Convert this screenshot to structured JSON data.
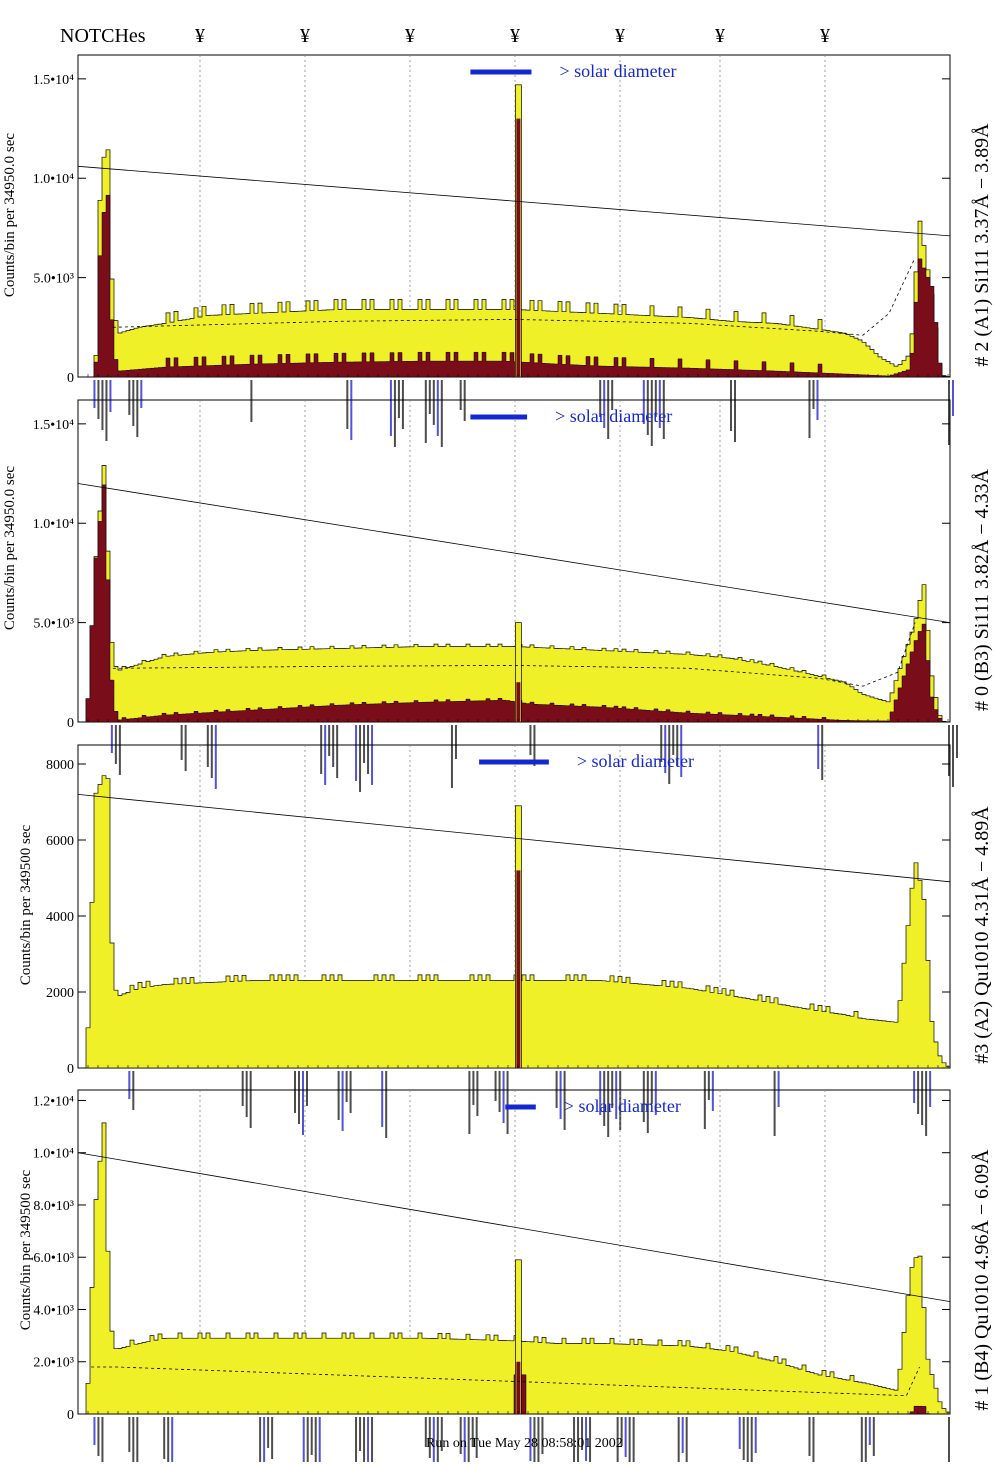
{
  "header": {
    "notch_label": "NOTCHes",
    "notch_symbol": "¥",
    "notch_positions": [
      200,
      305,
      410,
      515,
      620,
      720,
      825
    ]
  },
  "footer": {
    "run_text": "Run on Tue May 28 08:58:01 2002"
  },
  "colors": {
    "light_fill": "#f0f028",
    "dark_fill": "#7a0d1a",
    "accent_blue": "#1428d0",
    "label_blue": "#1a1acc"
  },
  "chart_data": [
    {
      "type": "histogram",
      "panel_title": "# 2 (A1) Si111  3.37Å − 3.89Å",
      "ylabel": "Counts/bin per  34950.0 sec",
      "solar_label": "> solar diameter",
      "ylim": [
        0,
        16200
      ],
      "yticks": [
        {
          "v": 0,
          "label": "0"
        },
        {
          "v": 5000,
          "label": "5.0•10³"
        },
        {
          "v": 10000,
          "label": "1.0•10⁴"
        },
        {
          "v": 15000,
          "label": "1.5•10⁴"
        }
      ],
      "light_nodes": [
        [
          0,
          0
        ],
        [
          0.02,
          0
        ],
        [
          0.026,
          10200
        ],
        [
          0.034,
          12000
        ],
        [
          0.04,
          3500
        ],
        [
          0.047,
          2200
        ],
        [
          0.07,
          2500
        ],
        [
          0.1,
          2700
        ],
        [
          0.15,
          3100
        ],
        [
          0.2,
          3200
        ],
        [
          0.25,
          3300
        ],
        [
          0.3,
          3400
        ],
        [
          0.35,
          3400
        ],
        [
          0.4,
          3400
        ],
        [
          0.46,
          3400
        ],
        [
          0.49,
          3400
        ],
        [
          0.5,
          3400
        ],
        [
          0.55,
          3300
        ],
        [
          0.6,
          3200
        ],
        [
          0.65,
          3100
        ],
        [
          0.7,
          3000
        ],
        [
          0.75,
          2800
        ],
        [
          0.8,
          2700
        ],
        [
          0.85,
          2400
        ],
        [
          0.88,
          2200
        ],
        [
          0.9,
          1800
        ],
        [
          0.92,
          1000
        ],
        [
          0.94,
          500
        ],
        [
          0.955,
          1200
        ],
        [
          0.965,
          8000
        ],
        [
          0.98,
          4000
        ],
        [
          0.99,
          100
        ],
        [
          1,
          0
        ]
      ],
      "light_comb": {
        "period": 0.0107,
        "amp": 500,
        "start": 0.09,
        "end": 0.88
      },
      "dark_nodes": [
        [
          0,
          0
        ],
        [
          0.02,
          0
        ],
        [
          0.026,
          7000
        ],
        [
          0.034,
          9700
        ],
        [
          0.04,
          1500
        ],
        [
          0.047,
          300
        ],
        [
          0.1,
          500
        ],
        [
          0.2,
          650
        ],
        [
          0.3,
          750
        ],
        [
          0.4,
          800
        ],
        [
          0.49,
          800
        ],
        [
          0.55,
          650
        ],
        [
          0.6,
          550
        ],
        [
          0.7,
          450
        ],
        [
          0.8,
          300
        ],
        [
          0.88,
          150
        ],
        [
          0.93,
          50
        ],
        [
          0.955,
          400
        ],
        [
          0.965,
          6000
        ],
        [
          0.98,
          4500
        ],
        [
          0.99,
          50
        ],
        [
          1,
          0
        ]
      ],
      "dark_comb": {
        "period": 0.0107,
        "amp": 450,
        "start": 0.09,
        "end": 0.86
      },
      "peak": {
        "x": 0.505,
        "light": 14700,
        "dark": 13000
      },
      "line": [
        10600,
        7100
      ],
      "dashed": [
        [
          0.04,
          2500
        ],
        [
          0.3,
          2800
        ],
        [
          0.5,
          2900
        ],
        [
          0.7,
          2700
        ],
        [
          0.85,
          2300
        ],
        [
          0.9,
          2100
        ],
        [
          0.93,
          3200
        ],
        [
          0.96,
          6000
        ]
      ],
      "solar_bar": [
        0.45,
        0.52
      ],
      "label_groups": [
        {
          "x": 0.02,
          "n": 5
        },
        {
          "x": 0.06,
          "n": 4
        },
        {
          "x": 0.2,
          "n": 1
        },
        {
          "x": 0.31,
          "n": 2
        },
        {
          "x": 0.36,
          "n": 4
        },
        {
          "x": 0.4,
          "n": 5
        },
        {
          "x": 0.44,
          "n": 2
        },
        {
          "x": 0.6,
          "n": 4
        },
        {
          "x": 0.65,
          "n": 6
        },
        {
          "x": 0.75,
          "n": 2
        },
        {
          "x": 0.84,
          "n": 3
        },
        {
          "x": 1.0,
          "n": 2
        }
      ]
    },
    {
      "type": "histogram",
      "panel_title": "# 0 (B3) Si111  3.82Å − 4.33Å",
      "ylabel": "Counts/bin per  34950.0 sec",
      "solar_label": "> solar diameter",
      "ylim": [
        0,
        16200
      ],
      "yticks": [
        {
          "v": 0,
          "label": "0"
        },
        {
          "v": 5000,
          "label": "5.0•10³"
        },
        {
          "v": 10000,
          "label": "1.0•10⁴"
        },
        {
          "v": 15000,
          "label": "1.5•10⁴"
        }
      ],
      "light_nodes": [
        [
          0,
          0
        ],
        [
          0.01,
          0
        ],
        [
          0.02,
          8000
        ],
        [
          0.03,
          13000
        ],
        [
          0.04,
          3000
        ],
        [
          0.047,
          2600
        ],
        [
          0.1,
          3300
        ],
        [
          0.15,
          3500
        ],
        [
          0.2,
          3600
        ],
        [
          0.3,
          3700
        ],
        [
          0.4,
          3800
        ],
        [
          0.45,
          3800
        ],
        [
          0.5,
          3800
        ],
        [
          0.55,
          3700
        ],
        [
          0.6,
          3600
        ],
        [
          0.65,
          3500
        ],
        [
          0.7,
          3400
        ],
        [
          0.75,
          3200
        ],
        [
          0.8,
          2800
        ],
        [
          0.85,
          2300
        ],
        [
          0.88,
          2000
        ],
        [
          0.9,
          1400
        ],
        [
          0.93,
          1000
        ],
        [
          0.96,
          5000
        ],
        [
          0.97,
          7000
        ],
        [
          0.98,
          2000
        ],
        [
          0.99,
          50
        ],
        [
          1,
          0
        ]
      ],
      "light_comb": {
        "period": 0.012,
        "amp": 120,
        "start": 0.05,
        "end": 0.86
      },
      "dark_nodes": [
        [
          0,
          0
        ],
        [
          0.01,
          0
        ],
        [
          0.02,
          8000
        ],
        [
          0.03,
          12000
        ],
        [
          0.04,
          1000
        ],
        [
          0.047,
          100
        ],
        [
          0.1,
          350
        ],
        [
          0.2,
          600
        ],
        [
          0.3,
          850
        ],
        [
          0.4,
          1000
        ],
        [
          0.49,
          1100
        ],
        [
          0.52,
          900
        ],
        [
          0.6,
          750
        ],
        [
          0.7,
          450
        ],
        [
          0.8,
          250
        ],
        [
          0.88,
          80
        ],
        [
          0.93,
          50
        ],
        [
          0.96,
          4000
        ],
        [
          0.97,
          5000
        ],
        [
          0.98,
          1000
        ],
        [
          0.99,
          50
        ],
        [
          1,
          0
        ]
      ],
      "dark_comb": {
        "period": 0.012,
        "amp": 100,
        "start": 0.05,
        "end": 0.86
      },
      "peak": {
        "x": 0.505,
        "light": 5000,
        "dark": 2000
      },
      "line": [
        12000,
        5000
      ],
      "dashed": [
        [
          0.04,
          2700
        ],
        [
          0.3,
          2800
        ],
        [
          0.5,
          2850
        ],
        [
          0.7,
          2700
        ],
        [
          0.85,
          2200
        ],
        [
          0.9,
          1800
        ],
        [
          0.94,
          2500
        ],
        [
          0.96,
          5000
        ]
      ],
      "solar_bar": [
        0.45,
        0.515
      ],
      "label_groups": [
        {
          "x": 0.04,
          "n": 3
        },
        {
          "x": 0.12,
          "n": 2
        },
        {
          "x": 0.15,
          "n": 3
        },
        {
          "x": 0.28,
          "n": 5
        },
        {
          "x": 0.32,
          "n": 5
        },
        {
          "x": 0.43,
          "n": 2
        },
        {
          "x": 0.52,
          "n": 2
        },
        {
          "x": 0.67,
          "n": 6
        },
        {
          "x": 0.85,
          "n": 2
        },
        {
          "x": 1.0,
          "n": 3
        }
      ]
    },
    {
      "type": "histogram",
      "panel_title": "#3 (A2) Qu1010  4.31Å − 4.89Å",
      "ylabel": "Counts/bin per  349500 sec",
      "solar_label": "> solar diameter",
      "ylim": [
        0,
        8500
      ],
      "yticks": [
        {
          "v": 0,
          "label": "0"
        },
        {
          "v": 2000,
          "label": "2000"
        },
        {
          "v": 4000,
          "label": "4000"
        },
        {
          "v": 6000,
          "label": "6000"
        },
        {
          "v": 8000,
          "label": "8000"
        }
      ],
      "light_nodes": [
        [
          0,
          0
        ],
        [
          0.01,
          0
        ],
        [
          0.02,
          7200
        ],
        [
          0.03,
          7700
        ],
        [
          0.035,
          7600
        ],
        [
          0.04,
          2200
        ],
        [
          0.047,
          1900
        ],
        [
          0.07,
          2100
        ],
        [
          0.1,
          2200
        ],
        [
          0.2,
          2300
        ],
        [
          0.3,
          2300
        ],
        [
          0.4,
          2300
        ],
        [
          0.5,
          2300
        ],
        [
          0.55,
          2300
        ],
        [
          0.6,
          2300
        ],
        [
          0.65,
          2200
        ],
        [
          0.7,
          2100
        ],
        [
          0.75,
          1900
        ],
        [
          0.8,
          1700
        ],
        [
          0.85,
          1500
        ],
        [
          0.88,
          1400
        ],
        [
          0.9,
          1300
        ],
        [
          0.94,
          1200
        ],
        [
          0.96,
          5500
        ],
        [
          0.97,
          4500
        ],
        [
          0.98,
          1000
        ],
        [
          0.99,
          200
        ],
        [
          1,
          0
        ]
      ],
      "light_comb": {
        "period": 0.01,
        "amp": 150,
        "start": 0.05,
        "end": 0.9
      },
      "dark_nodes": [
        [
          0,
          0
        ],
        [
          1,
          0
        ]
      ],
      "dark_comb": {
        "period": 0.01,
        "amp": 0,
        "start": 0.05,
        "end": 0.9
      },
      "peak": {
        "x": 0.505,
        "light": 6900,
        "dark": 5200
      },
      "line": [
        7200,
        4900
      ],
      "dashed": [],
      "solar_bar": [
        0.46,
        0.54
      ],
      "label_groups": [
        {
          "x": 0.06,
          "n": 2
        },
        {
          "x": 0.19,
          "n": 3
        },
        {
          "x": 0.25,
          "n": 4
        },
        {
          "x": 0.3,
          "n": 4
        },
        {
          "x": 0.35,
          "n": 2
        },
        {
          "x": 0.45,
          "n": 3
        },
        {
          "x": 0.48,
          "n": 4
        },
        {
          "x": 0.55,
          "n": 3
        },
        {
          "x": 0.6,
          "n": 6
        },
        {
          "x": 0.65,
          "n": 4
        },
        {
          "x": 0.72,
          "n": 3
        },
        {
          "x": 0.8,
          "n": 2
        },
        {
          "x": 0.96,
          "n": 5
        }
      ]
    },
    {
      "type": "histogram",
      "panel_title": "# 1 (B4) Qu1010 4.96Å − 6.09Å",
      "ylabel": "Counts/bin per  349500 sec",
      "solar_label": "> solar diameter",
      "ylim": [
        0,
        12400
      ],
      "yticks": [
        {
          "v": 0,
          "label": "0"
        },
        {
          "v": 2000,
          "label": "2.0•10³"
        },
        {
          "v": 4000,
          "label": "4.0•10³"
        },
        {
          "v": 6000,
          "label": "6.0•10³"
        },
        {
          "v": 8000,
          "label": "8.0•10³"
        },
        {
          "v": 10000,
          "label": "1.0•10⁴"
        },
        {
          "v": 12000,
          "label": "1.2•10⁴"
        }
      ],
      "light_nodes": [
        [
          0,
          0
        ],
        [
          0.01,
          0
        ],
        [
          0.02,
          8000
        ],
        [
          0.03,
          11200
        ],
        [
          0.034,
          6500
        ],
        [
          0.04,
          2500
        ],
        [
          0.047,
          2500
        ],
        [
          0.07,
          2700
        ],
        [
          0.1,
          2900
        ],
        [
          0.2,
          2900
        ],
        [
          0.3,
          2900
        ],
        [
          0.4,
          2900
        ],
        [
          0.5,
          2800
        ],
        [
          0.55,
          2700
        ],
        [
          0.6,
          2700
        ],
        [
          0.7,
          2600
        ],
        [
          0.75,
          2400
        ],
        [
          0.8,
          2000
        ],
        [
          0.85,
          1500
        ],
        [
          0.9,
          1200
        ],
        [
          0.94,
          900
        ],
        [
          0.955,
          5500
        ],
        [
          0.965,
          6300
        ],
        [
          0.975,
          2000
        ],
        [
          0.99,
          300
        ],
        [
          1,
          0
        ]
      ],
      "light_comb": {
        "period": 0.011,
        "amp": 200,
        "start": 0.05,
        "end": 0.9
      },
      "dark_nodes": [
        [
          0,
          0
        ],
        [
          0.5,
          0
        ],
        [
          0.502,
          1500
        ],
        [
          0.512,
          1500
        ],
        [
          0.515,
          0
        ],
        [
          0.955,
          0
        ],
        [
          0.96,
          300
        ],
        [
          0.97,
          300
        ],
        [
          0.975,
          0
        ],
        [
          1,
          0
        ]
      ],
      "dark_comb": {
        "period": 0.011,
        "amp": 0,
        "start": 0.05,
        "end": 0.9
      },
      "peak": {
        "x": 0.505,
        "light": 5900,
        "dark": 2000
      },
      "line": [
        10000,
        4300
      ],
      "dashed": [
        [
          0.015,
          1800
        ],
        [
          0.03,
          1800
        ],
        [
          0.045,
          1800
        ],
        [
          0.95,
          700
        ],
        [
          0.965,
          1800
        ]
      ],
      "solar_bar": [
        0.49,
        0.525
      ],
      "label_groups": [
        {
          "x": 0.02,
          "n": 3
        },
        {
          "x": 0.06,
          "n": 3
        },
        {
          "x": 0.1,
          "n": 3
        },
        {
          "x": 0.21,
          "n": 4
        },
        {
          "x": 0.26,
          "n": 5
        },
        {
          "x": 0.32,
          "n": 5
        },
        {
          "x": 0.4,
          "n": 5
        },
        {
          "x": 0.44,
          "n": 5
        },
        {
          "x": 0.52,
          "n": 4
        },
        {
          "x": 0.57,
          "n": 5
        },
        {
          "x": 0.62,
          "n": 5
        },
        {
          "x": 0.69,
          "n": 3
        },
        {
          "x": 0.76,
          "n": 5
        },
        {
          "x": 0.84,
          "n": 2
        },
        {
          "x": 0.9,
          "n": 4
        },
        {
          "x": 1.0,
          "n": 1
        }
      ]
    }
  ]
}
